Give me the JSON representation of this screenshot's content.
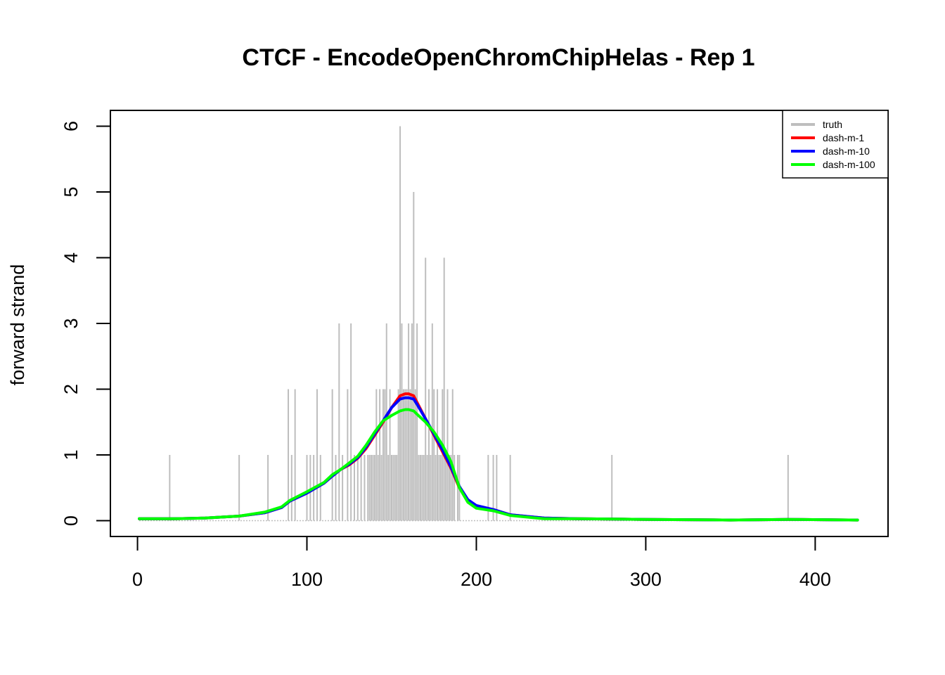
{
  "chart_data": {
    "type": "line",
    "title": "CTCF - EncodeOpenChromChipHelas - Rep 1",
    "xlabel": "",
    "ylabel": "forward strand",
    "xlim": [
      -16,
      443
    ],
    "ylim": [
      -0.24,
      6.24
    ],
    "x_ticks": [
      0,
      100,
      200,
      300,
      400
    ],
    "y_ticks": [
      0,
      1,
      2,
      3,
      4,
      5,
      6
    ],
    "grid": false,
    "legend_position": "top-right",
    "truth": {
      "name": "truth",
      "color": "#BEBEBE",
      "points": [
        [
          19,
          1
        ],
        [
          60,
          1
        ],
        [
          77,
          1
        ],
        [
          89,
          2
        ],
        [
          91,
          1
        ],
        [
          93,
          2
        ],
        [
          100,
          1
        ],
        [
          102,
          1
        ],
        [
          104,
          1
        ],
        [
          106,
          2
        ],
        [
          108,
          1
        ],
        [
          115,
          2
        ],
        [
          117,
          1
        ],
        [
          119,
          3
        ],
        [
          121,
          1
        ],
        [
          124,
          2
        ],
        [
          126,
          3
        ],
        [
          128,
          1
        ],
        [
          130,
          1
        ],
        [
          132,
          1
        ],
        [
          134,
          1
        ],
        [
          136,
          1
        ],
        [
          137,
          1
        ],
        [
          138,
          1
        ],
        [
          139,
          1
        ],
        [
          140,
          1
        ],
        [
          141,
          2
        ],
        [
          142,
          1
        ],
        [
          143,
          2
        ],
        [
          144,
          1
        ],
        [
          145,
          2
        ],
        [
          146,
          2
        ],
        [
          147,
          3
        ],
        [
          148,
          1
        ],
        [
          149,
          2
        ],
        [
          150,
          1
        ],
        [
          151,
          1
        ],
        [
          152,
          1
        ],
        [
          153,
          1
        ],
        [
          154,
          2
        ],
        [
          155,
          6
        ],
        [
          156,
          3
        ],
        [
          157,
          2
        ],
        [
          158,
          2
        ],
        [
          159,
          2
        ],
        [
          160,
          3
        ],
        [
          161,
          2
        ],
        [
          162,
          3
        ],
        [
          163,
          5
        ],
        [
          164,
          2
        ],
        [
          165,
          3
        ],
        [
          166,
          1
        ],
        [
          167,
          1
        ],
        [
          168,
          1
        ],
        [
          169,
          1
        ],
        [
          170,
          4
        ],
        [
          171,
          1
        ],
        [
          172,
          2
        ],
        [
          173,
          1
        ],
        [
          174,
          3
        ],
        [
          175,
          2
        ],
        [
          176,
          1
        ],
        [
          177,
          2
        ],
        [
          178,
          1
        ],
        [
          179,
          1
        ],
        [
          180,
          2
        ],
        [
          181,
          4
        ],
        [
          182,
          1
        ],
        [
          183,
          2
        ],
        [
          184,
          1
        ],
        [
          185,
          1
        ],
        [
          186,
          2
        ],
        [
          187,
          1
        ],
        [
          189,
          1
        ],
        [
          190,
          1
        ],
        [
          207,
          1
        ],
        [
          210,
          1
        ],
        [
          212,
          1
        ],
        [
          220,
          1
        ],
        [
          280,
          1
        ],
        [
          384,
          1
        ]
      ]
    },
    "series": [
      {
        "name": "dash-m-1",
        "color": "#FF0000",
        "x": [
          1,
          20,
          40,
          60,
          75,
          85,
          90,
          100,
          110,
          115,
          120,
          125,
          130,
          135,
          140,
          145,
          150,
          155,
          158,
          160,
          163,
          165,
          170,
          175,
          180,
          185,
          190,
          195,
          200,
          210,
          220,
          240,
          260,
          300,
          350,
          384,
          425
        ],
        "y": [
          0.03,
          0.03,
          0.04,
          0.07,
          0.12,
          0.2,
          0.3,
          0.42,
          0.57,
          0.68,
          0.78,
          0.85,
          0.95,
          1.1,
          1.3,
          1.5,
          1.72,
          1.9,
          1.93,
          1.93,
          1.9,
          1.8,
          1.55,
          1.3,
          1.05,
          0.8,
          0.5,
          0.3,
          0.22,
          0.17,
          0.09,
          0.04,
          0.03,
          0.02,
          0.01,
          0.02,
          0.01
        ]
      },
      {
        "name": "dash-m-10",
        "color": "#0000FF",
        "x": [
          1,
          20,
          40,
          60,
          75,
          85,
          90,
          100,
          110,
          115,
          120,
          125,
          130,
          135,
          140,
          145,
          150,
          155,
          158,
          160,
          163,
          165,
          170,
          175,
          180,
          185,
          190,
          195,
          200,
          210,
          220,
          240,
          260,
          300,
          350,
          384,
          425
        ],
        "y": [
          0.03,
          0.03,
          0.04,
          0.07,
          0.12,
          0.2,
          0.3,
          0.42,
          0.57,
          0.68,
          0.78,
          0.86,
          0.96,
          1.12,
          1.32,
          1.52,
          1.72,
          1.85,
          1.87,
          1.87,
          1.85,
          1.77,
          1.55,
          1.32,
          1.08,
          0.82,
          0.52,
          0.32,
          0.23,
          0.17,
          0.09,
          0.04,
          0.03,
          0.02,
          0.01,
          0.02,
          0.01
        ]
      },
      {
        "name": "dash-m-100",
        "color": "#00FF00",
        "x": [
          1,
          20,
          40,
          60,
          75,
          85,
          90,
          100,
          110,
          115,
          120,
          125,
          130,
          135,
          140,
          145,
          150,
          155,
          158,
          160,
          163,
          165,
          170,
          175,
          180,
          185,
          190,
          195,
          200,
          210,
          220,
          240,
          260,
          300,
          350,
          384,
          425
        ],
        "y": [
          0.03,
          0.03,
          0.04,
          0.07,
          0.13,
          0.21,
          0.31,
          0.44,
          0.58,
          0.7,
          0.78,
          0.88,
          0.98,
          1.15,
          1.35,
          1.52,
          1.6,
          1.67,
          1.69,
          1.69,
          1.67,
          1.62,
          1.5,
          1.35,
          1.15,
          0.9,
          0.5,
          0.28,
          0.19,
          0.15,
          0.08,
          0.03,
          0.03,
          0.02,
          0.01,
          0.02,
          0.01
        ]
      }
    ]
  }
}
